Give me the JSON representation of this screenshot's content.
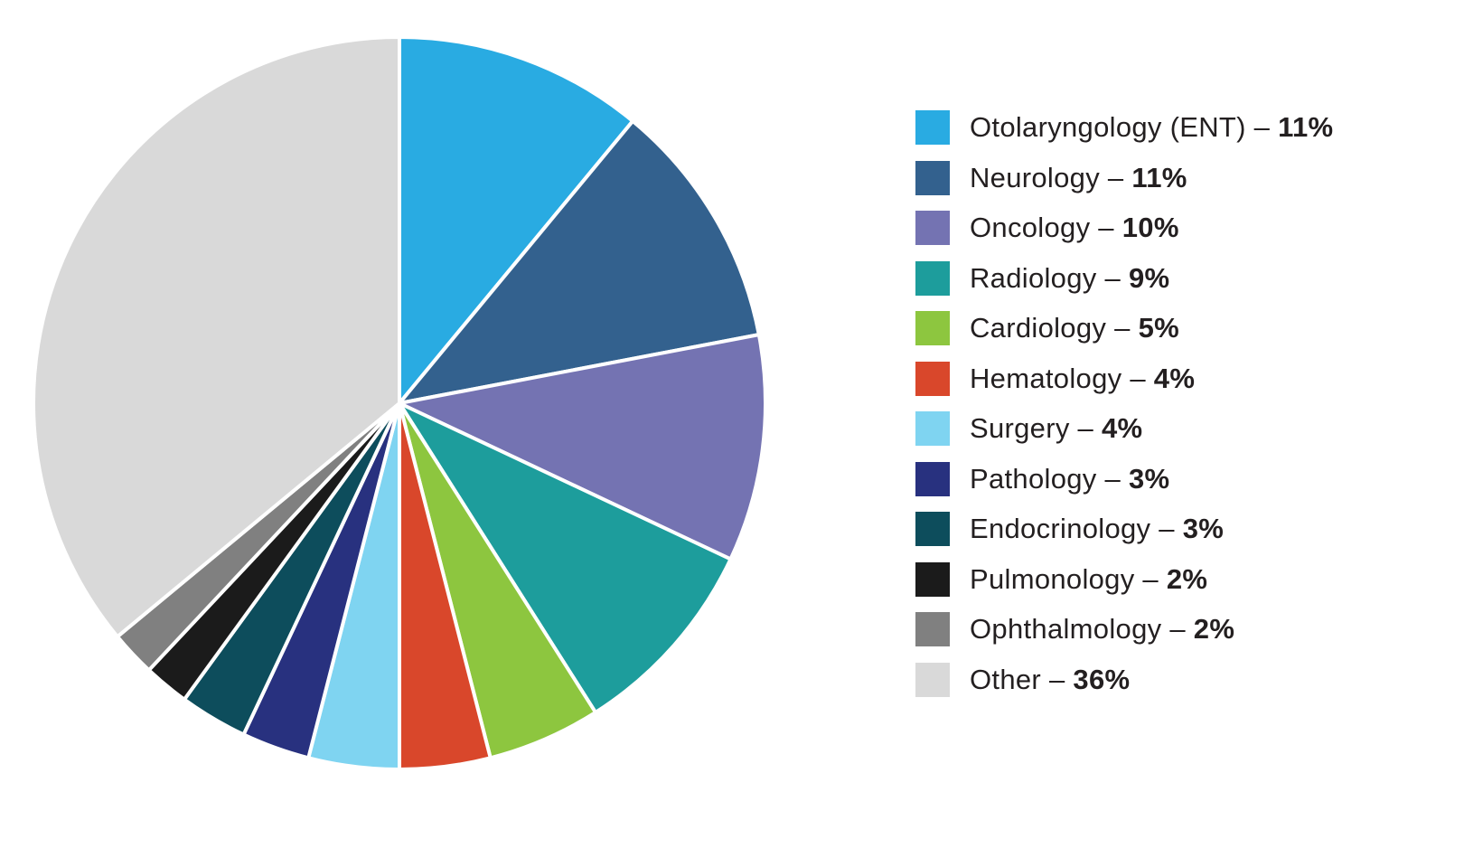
{
  "chart_data": {
    "type": "pie",
    "title": "",
    "legend_position": "right",
    "start_angle_deg": -90,
    "direction": "clockwise",
    "separator": "–",
    "value_suffix": "%",
    "slices": [
      {
        "label": "Otolaryngology (ENT)",
        "value": 11,
        "color": "#29ABE2"
      },
      {
        "label": "Neurology",
        "value": 11,
        "color": "#33618E"
      },
      {
        "label": "Oncology",
        "value": 10,
        "color": "#7473B2"
      },
      {
        "label": "Radiology",
        "value": 9,
        "color": "#1D9D9C"
      },
      {
        "label": "Cardiology",
        "value": 5,
        "color": "#8DC63F"
      },
      {
        "label": "Hematology",
        "value": 4,
        "color": "#D9472B"
      },
      {
        "label": "Surgery",
        "value": 4,
        "color": "#7FD4F1"
      },
      {
        "label": "Pathology",
        "value": 3,
        "color": "#28317F"
      },
      {
        "label": "Endocrinology",
        "value": 3,
        "color": "#0D4D5C"
      },
      {
        "label": "Pulmonology",
        "value": 2,
        "color": "#1B1B1B"
      },
      {
        "label": "Ophthalmology",
        "value": 2,
        "color": "#808080"
      },
      {
        "label": "Other",
        "value": 36,
        "color": "#D9D9D9"
      }
    ]
  },
  "page": {
    "background": "#FFFFFF"
  }
}
